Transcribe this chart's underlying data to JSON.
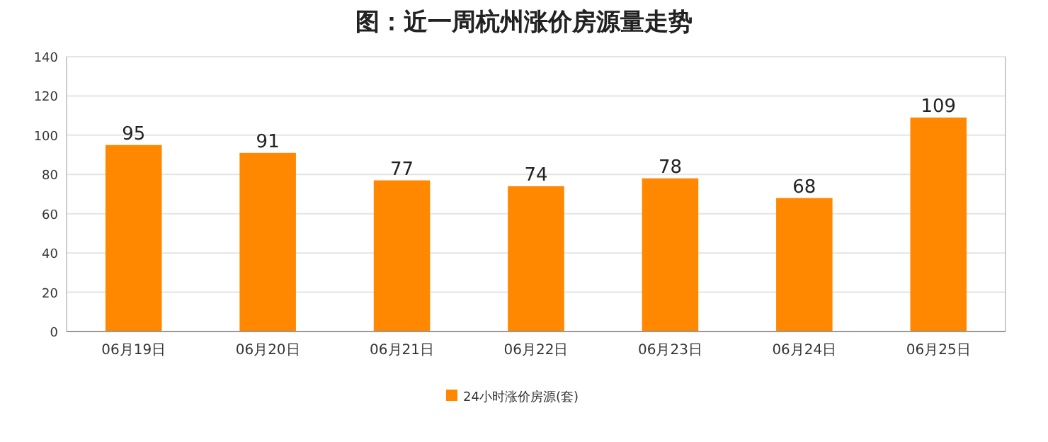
{
  "chart_data": {
    "type": "bar",
    "title": "图：近一周杭州涨价房源量走势",
    "categories": [
      "06月19日",
      "06月20日",
      "06月21日",
      "06月22日",
      "06月23日",
      "06月24日",
      "06月25日"
    ],
    "series": [
      {
        "name": "24小时涨价房源(套)",
        "color": "#ff8800",
        "values": [
          95,
          91,
          77,
          74,
          78,
          68,
          109
        ]
      }
    ],
    "ylim": [
      0,
      140
    ],
    "yticks": [
      0,
      20,
      40,
      60,
      80,
      100,
      120,
      140
    ],
    "grid": "y",
    "legend": "bottom",
    "data_labels": true
  }
}
